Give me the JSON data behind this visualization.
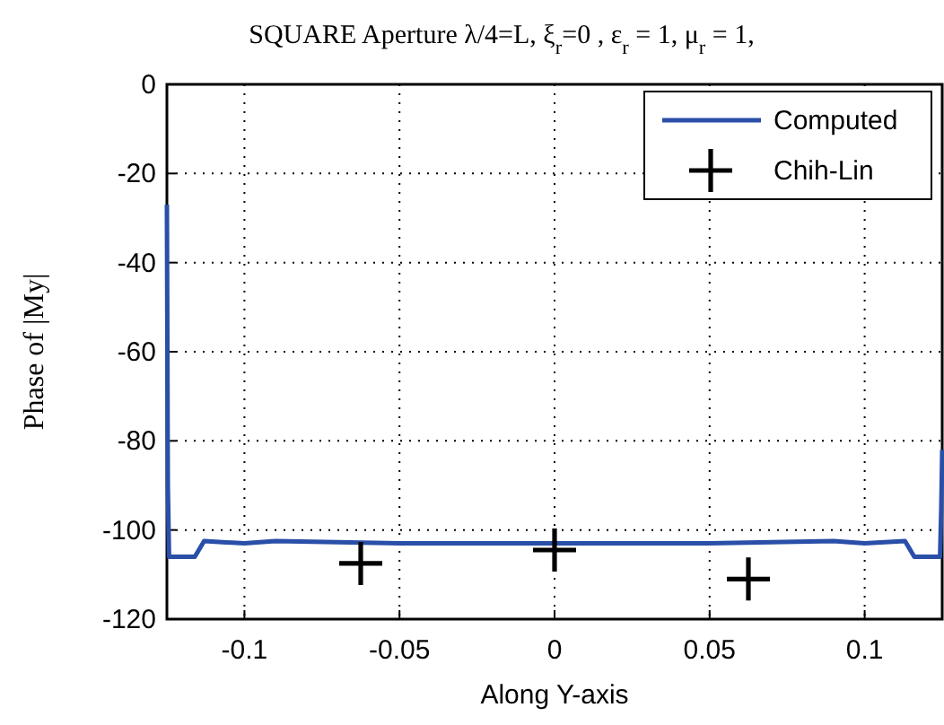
{
  "chart_data": {
    "type": "line",
    "title": "SQUARE Aperture λ/4=L, ξ$_{r}$=0 , ε$_{r}$ = 1, μ$_{r}$ = 1,",
    "xlabel": "Along Y-axis",
    "ylabel": "Phase of |My|",
    "xlim": [
      -0.125,
      0.125
    ],
    "xticks": [
      -0.1,
      -0.05,
      0,
      0.05,
      0.1
    ],
    "ylim": [
      -120,
      0
    ],
    "yticks": [
      -120,
      -100,
      -80,
      -60,
      -40,
      -20,
      0
    ],
    "grid": true,
    "legend": "top right",
    "series": [
      {
        "name": "Computed",
        "color": "#2a4fa8",
        "marker": "none",
        "x": [
          -0.125,
          -0.1247,
          -0.1243,
          -0.116,
          -0.113,
          -0.1,
          -0.09,
          -0.05,
          0,
          0.05,
          0.09,
          0.1,
          0.113,
          0.116,
          0.1243,
          0.1247,
          0.125
        ],
        "values": [
          -27,
          -90,
          -106,
          -106,
          -102.5,
          -103,
          -102.5,
          -103,
          -103,
          -103,
          -102.5,
          -103,
          -102.5,
          -106,
          -106,
          -95,
          -82
        ]
      },
      {
        "name": "Chih-Lin",
        "type": "scatter",
        "color": "#000000",
        "marker": "cross",
        "x": [
          -0.0625,
          0,
          0.0625
        ],
        "values": [
          -107.5,
          -104.5,
          -111
        ]
      }
    ]
  }
}
